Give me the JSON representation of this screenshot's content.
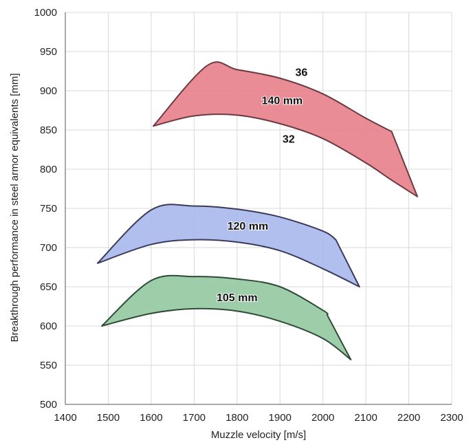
{
  "chart_data": {
    "type": "area",
    "xlabel": "Muzzle velocity [m/s]",
    "ylabel": "Breakthrough performance in steel armor equivalents [mm]",
    "xlim": [
      1400,
      2300
    ],
    "ylim": [
      500,
      1000
    ],
    "x_ticks": [
      1400,
      1500,
      1600,
      1700,
      1800,
      1900,
      2000,
      2100,
      2200,
      2300
    ],
    "y_ticks": [
      500,
      550,
      600,
      650,
      700,
      750,
      800,
      850,
      900,
      950,
      1000
    ],
    "grid": true,
    "series": [
      {
        "name": "140 mm",
        "color": "#e8808a",
        "stroke": "#6b3a40",
        "upper": [
          [
            1605,
            855
          ],
          [
            1730,
            932
          ],
          [
            1800,
            927
          ],
          [
            1900,
            916
          ],
          [
            2000,
            896
          ],
          [
            2100,
            865
          ],
          [
            2160,
            848
          ],
          [
            2220,
            765
          ]
        ],
        "lower": [
          [
            1605,
            855
          ],
          [
            1700,
            868
          ],
          [
            1800,
            869
          ],
          [
            1900,
            858
          ],
          [
            2000,
            839
          ],
          [
            2100,
            808
          ],
          [
            2160,
            786
          ],
          [
            2220,
            765
          ]
        ]
      },
      {
        "name": "120 mm",
        "color": "#a8b8ec",
        "stroke": "#3a3a5a",
        "upper": [
          [
            1475,
            680
          ],
          [
            1600,
            748
          ],
          [
            1700,
            753
          ],
          [
            1800,
            749
          ],
          [
            1900,
            739
          ],
          [
            2000,
            721
          ],
          [
            2030,
            710
          ],
          [
            2085,
            650
          ]
        ],
        "lower": [
          [
            1475,
            680
          ],
          [
            1600,
            704
          ],
          [
            1700,
            710
          ],
          [
            1800,
            707
          ],
          [
            1900,
            696
          ],
          [
            2000,
            673
          ],
          [
            2085,
            650
          ]
        ]
      },
      {
        "name": "105 mm",
        "color": "#92c9a0",
        "stroke": "#2e4a36",
        "upper": [
          [
            1485,
            600
          ],
          [
            1600,
            658
          ],
          [
            1700,
            663
          ],
          [
            1800,
            660
          ],
          [
            1900,
            650
          ],
          [
            2000,
            620
          ],
          [
            2010,
            614
          ],
          [
            2065,
            557
          ]
        ],
        "lower": [
          [
            1485,
            600
          ],
          [
            1600,
            616
          ],
          [
            1700,
            622
          ],
          [
            1800,
            619
          ],
          [
            1900,
            606
          ],
          [
            2000,
            584
          ],
          [
            2065,
            557
          ]
        ]
      }
    ],
    "annotations": [
      {
        "text": "36",
        "x": 1950,
        "y": 924
      },
      {
        "text": "140 mm",
        "x": 1905,
        "y": 888
      },
      {
        "text": "32",
        "x": 1920,
        "y": 839
      },
      {
        "text": "120 mm",
        "x": 1825,
        "y": 728
      },
      {
        "text": "105 mm",
        "x": 1800,
        "y": 637
      }
    ]
  }
}
